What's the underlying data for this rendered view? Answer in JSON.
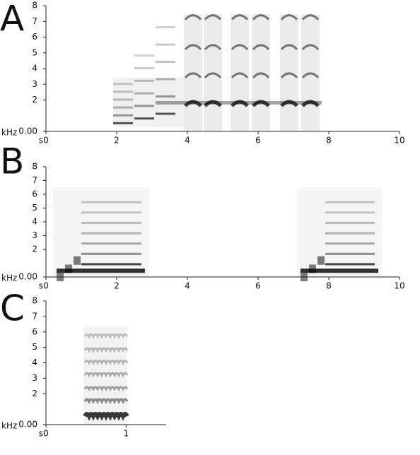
{
  "chart_data": [
    {
      "type": "spectrogram",
      "title": "A",
      "x_label": "s",
      "y_label": "kHz",
      "xlim": [
        0,
        10
      ],
      "xticks": [
        0,
        2,
        4,
        6,
        8,
        10
      ],
      "ylim": [
        0,
        8
      ],
      "yticks": [
        {
          "value": 0,
          "label": "0.00"
        },
        2,
        3,
        4,
        5,
        6,
        7,
        8
      ]
    },
    {
      "type": "spectrogram",
      "title": "B",
      "x_label": "s",
      "y_label": "kHz",
      "xlim": [
        0,
        10
      ],
      "xticks": [
        0,
        2,
        4,
        6,
        8,
        10
      ],
      "ylim": [
        0,
        8
      ],
      "yticks": [
        {
          "value": 0,
          "label": "0.00"
        },
        2,
        3,
        4,
        5,
        6,
        7,
        8
      ]
    },
    {
      "type": "spectrogram",
      "title": "C",
      "x_label": "s",
      "y_label": "kHz",
      "xlim": [
        0,
        1.5
      ],
      "xticks": [
        0,
        1
      ],
      "ylim": [
        0,
        8
      ],
      "yticks": [
        {
          "value": 0,
          "label": "0.00"
        },
        2,
        3,
        4,
        5,
        6,
        7,
        8
      ]
    }
  ]
}
